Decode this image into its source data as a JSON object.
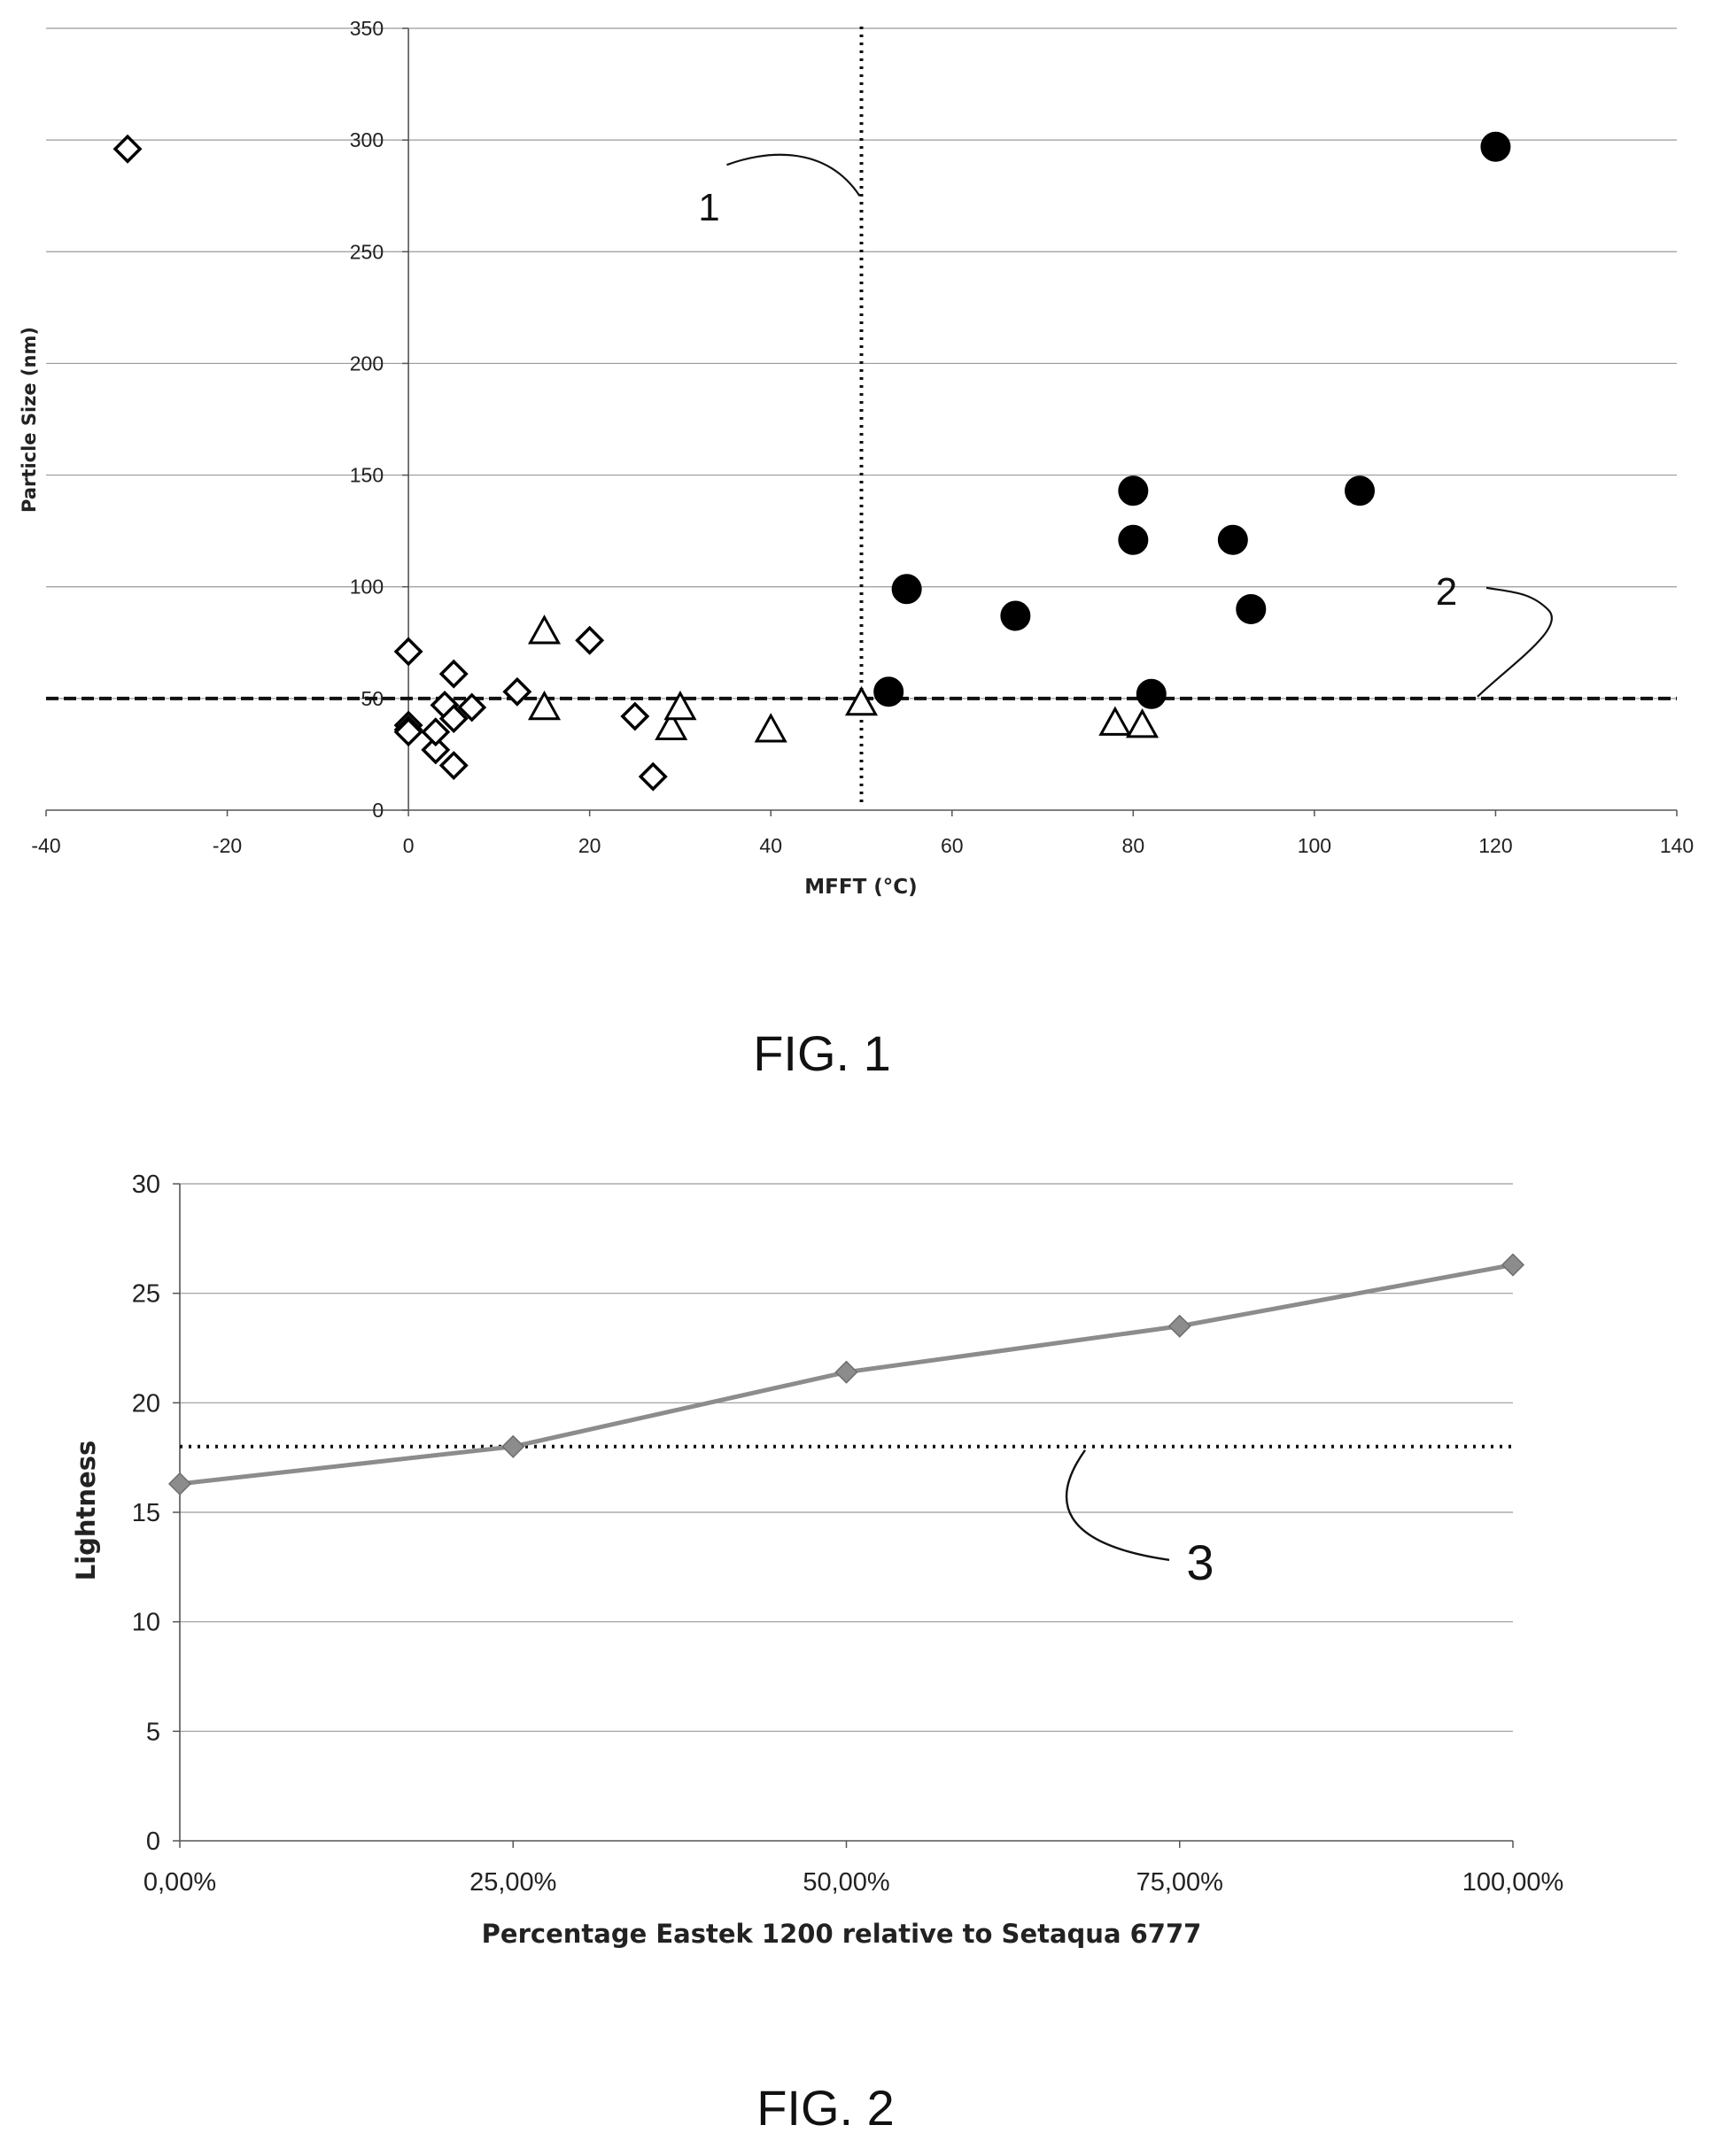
{
  "chart_data": [
    {
      "type": "scatter",
      "figure_label": "FIG. 1",
      "xlabel": "MFFT (°C)",
      "ylabel": "Particle Size (nm)",
      "xlim": [
        -40,
        140
      ],
      "ylim": [
        0,
        350
      ],
      "x_ticks": [
        -40,
        -20,
        0,
        20,
        40,
        60,
        80,
        100,
        120,
        140
      ],
      "y_ticks": [
        0,
        50,
        100,
        150,
        200,
        250,
        300,
        350
      ],
      "grid": "horizontal",
      "marker_colors": {
        "diamond": "#000000",
        "triangle": "#000000",
        "circle": "#000000"
      },
      "series": [
        {
          "marker": "diamond-open",
          "points": [
            [
              -31,
              296
            ],
            [
              0,
              71
            ],
            [
              0,
              38
            ],
            [
              0,
              36
            ],
            [
              0,
              35
            ],
            [
              3,
              27
            ],
            [
              3,
              35
            ],
            [
              4,
              47
            ],
            [
              5,
              61
            ],
            [
              5,
              41
            ],
            [
              5,
              20
            ],
            [
              7,
              46
            ],
            [
              12,
              53
            ],
            [
              20,
              76
            ],
            [
              25,
              42
            ],
            [
              27,
              15
            ]
          ]
        },
        {
          "marker": "triangle-open",
          "points": [
            [
              15,
              80
            ],
            [
              15,
              46
            ],
            [
              29,
              37
            ],
            [
              30,
              46
            ],
            [
              40,
              36
            ],
            [
              50,
              48
            ],
            [
              78,
              39
            ],
            [
              81,
              38
            ]
          ]
        },
        {
          "marker": "circle-filled",
          "points": [
            [
              53,
              53
            ],
            [
              55,
              99
            ],
            [
              67,
              87
            ],
            [
              80,
              143
            ],
            [
              80,
              121
            ],
            [
              82,
              52
            ],
            [
              91,
              121
            ],
            [
              93,
              90
            ],
            [
              105,
              143
            ],
            [
              120,
              297
            ]
          ]
        }
      ],
      "reference_lines": [
        {
          "orientation": "vertical",
          "value": 50,
          "style": "dotted",
          "callout": "1"
        },
        {
          "orientation": "horizontal",
          "value": 50,
          "style": "dashed",
          "callout": "2"
        }
      ]
    },
    {
      "type": "line",
      "figure_label": "FIG. 2",
      "xlabel": "Percentage Eastek 1200 relative to Setaqua 6777",
      "ylabel": "Lightness",
      "categories": [
        "0,00%",
        "25,00%",
        "50,00%",
        "75,00%",
        "100,00%"
      ],
      "ylim": [
        0,
        30
      ],
      "y_ticks": [
        0,
        5,
        10,
        15,
        20,
        25,
        30
      ],
      "grid": "horizontal",
      "series_color": "#8c8c8c",
      "series": [
        {
          "values": [
            16.3,
            18.0,
            21.4,
            23.5,
            26.3
          ]
        }
      ],
      "reference_lines": [
        {
          "orientation": "horizontal",
          "value": 18,
          "style": "dotted",
          "callout": "3"
        }
      ]
    }
  ]
}
